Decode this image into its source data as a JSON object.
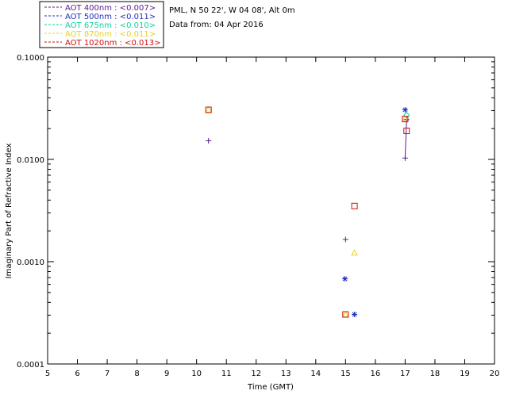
{
  "chart_data": {
    "type": "scatter",
    "info_lines": [
      "PML, N 50 22', W 04 08', Alt 0m",
      "Data from: 04 Apr 2016"
    ],
    "xlabel": "Time (GMT)",
    "ylabel": "Imaginary Part of Refractive Index",
    "xlim": [
      5,
      20
    ],
    "ylim": [
      0.0001,
      0.1
    ],
    "yscale": "log",
    "x_ticks": [
      "5",
      "6",
      "7",
      "8",
      "9",
      "10",
      "11",
      "12",
      "13",
      "14",
      "15",
      "16",
      "17",
      "18",
      "19",
      "20"
    ],
    "y_ticks": [
      {
        "value": 0.0001,
        "label": "0.0001"
      },
      {
        "value": 0.001,
        "label": "0.0010"
      },
      {
        "value": 0.01,
        "label": "0.0100"
      },
      {
        "value": 0.1,
        "label": "0.1000"
      }
    ],
    "series": [
      {
        "name": "AOT  400nm : <0.007>",
        "color": "#5a1a8c",
        "marker": "plus",
        "points": [
          [
            10.4,
            0.0152
          ],
          [
            15.0,
            0.00165
          ],
          [
            17.0,
            0.0103
          ],
          [
            17.05,
            0.0245
          ]
        ],
        "line": [
          [
            17.0,
            0.0103
          ],
          [
            17.05,
            0.0245
          ]
        ]
      },
      {
        "name": "AOT  500nm : <0.011>",
        "color": "#2030c0",
        "marker": "asterisk",
        "points": [
          [
            14.98,
            0.00068
          ],
          [
            15.3,
            0.000305
          ],
          [
            17.0,
            0.0305
          ]
        ]
      },
      {
        "name": "AOT  675nm : <0.010>",
        "color": "#10d0a0",
        "marker": "diamond",
        "points": [
          [
            17.05,
            0.027
          ]
        ]
      },
      {
        "name": "AOT  870nm : <0.011>",
        "color": "#e8d020",
        "marker": "triangle",
        "points": [
          [
            10.4,
            0.0305
          ],
          [
            15.3,
            0.00122
          ],
          [
            15.0,
            0.000305
          ],
          [
            17.0,
            0.0248
          ]
        ]
      },
      {
        "name": "AOT 1020nm : <0.013>",
        "color": "#cc1010",
        "marker": "square",
        "points": [
          [
            10.4,
            0.0305
          ],
          [
            15.3,
            0.0035
          ],
          [
            15.0,
            0.000305
          ],
          [
            17.0,
            0.0248
          ],
          [
            17.05,
            0.019
          ]
        ]
      }
    ]
  }
}
